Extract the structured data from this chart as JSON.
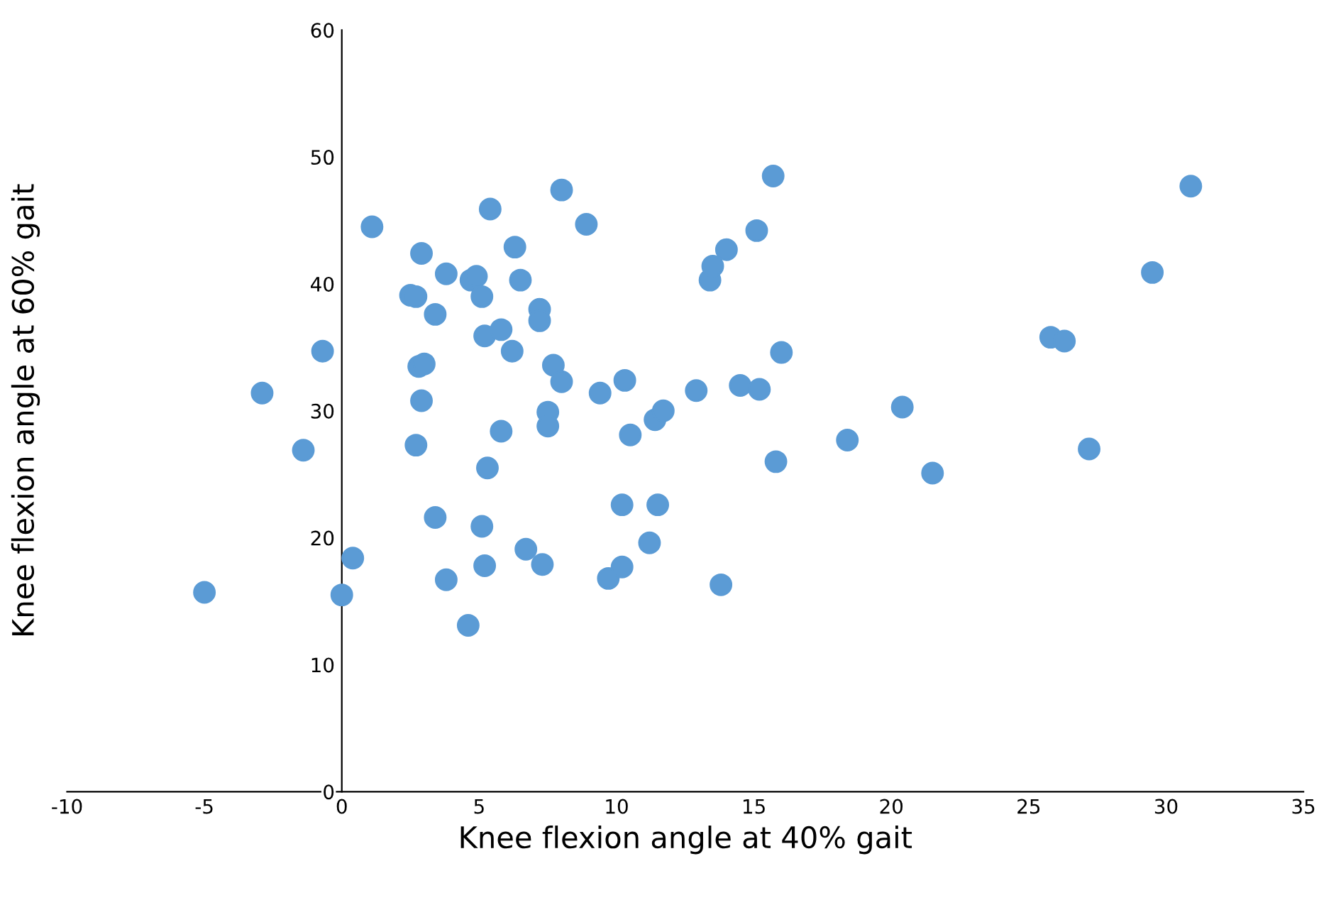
{
  "chart_data": {
    "type": "scatter",
    "xlabel": "Knee flexion angle at 40% gait",
    "ylabel": "Knee flexion angle at 60% gait",
    "xlim": [
      -10,
      35
    ],
    "xticks": [
      -10,
      -5,
      0,
      5,
      10,
      15,
      20,
      25,
      30,
      35
    ],
    "ylim": [
      0,
      60
    ],
    "yticks": [
      0,
      10,
      20,
      30,
      40,
      50,
      60
    ],
    "grid": false,
    "legend": false,
    "marker": "circle",
    "series": [
      {
        "color": "#5b9bd5",
        "x": [
          -5.0,
          -2.9,
          -1.4,
          -0.7,
          0.0,
          0.4,
          1.1,
          2.5,
          2.7,
          2.9,
          2.8,
          3.0,
          2.9,
          2.7,
          3.4,
          3.8,
          3.4,
          3.8,
          4.6,
          4.7,
          4.9,
          5.4,
          5.1,
          5.2,
          5.8,
          5.3,
          5.1,
          5.2,
          5.8,
          6.2,
          6.3,
          6.5,
          6.7,
          7.2,
          7.2,
          7.3,
          7.5,
          7.5,
          7.7,
          8.0,
          8.0,
          8.9,
          9.4,
          9.7,
          10.2,
          10.3,
          10.2,
          10.5,
          11.2,
          11.4,
          11.5,
          11.7,
          12.9,
          13.4,
          13.5,
          13.8,
          14.0,
          14.5,
          15.1,
          15.2,
          15.7,
          15.8,
          16.0,
          18.4,
          20.4,
          21.5,
          25.8,
          26.3,
          27.2,
          29.5,
          30.9
        ],
        "values": [
          15.7,
          31.4,
          26.9,
          34.7,
          15.5,
          18.4,
          44.5,
          39.1,
          39.0,
          42.4,
          33.5,
          33.7,
          30.8,
          27.3,
          37.6,
          40.8,
          21.6,
          16.7,
          13.1,
          40.3,
          40.6,
          45.9,
          39.0,
          35.9,
          36.4,
          25.5,
          20.9,
          17.8,
          28.4,
          34.7,
          42.9,
          40.3,
          19.1,
          38.0,
          37.1,
          17.9,
          29.9,
          28.8,
          33.6,
          47.4,
          32.3,
          44.7,
          31.4,
          16.8,
          22.6,
          32.4,
          17.7,
          28.1,
          19.6,
          29.3,
          22.6,
          30.0,
          31.6,
          40.3,
          41.4,
          16.3,
          42.7,
          32.0,
          44.2,
          31.7,
          48.5,
          26.0,
          34.6,
          27.7,
          30.3,
          25.1,
          35.8,
          35.5,
          27.0,
          40.9,
          47.7
        ]
      }
    ]
  }
}
